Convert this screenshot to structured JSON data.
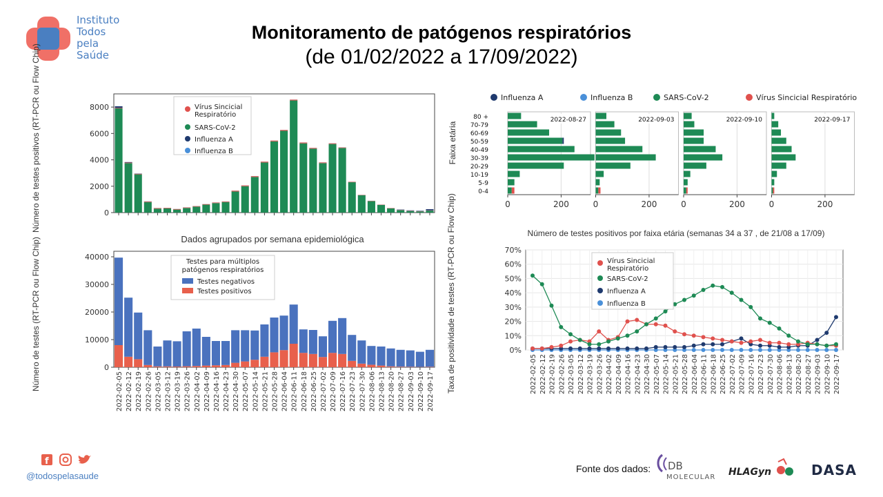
{
  "header": {
    "logo_lines": [
      "Instituto",
      "Todos",
      "pela",
      "Saúde"
    ],
    "title": "Monitoramento de patógenos respiratórios",
    "subtitle": "(de 01/02/2022 a 17/09/2022)"
  },
  "footer": {
    "handle": "@todospelasaude",
    "source_label": "Fonte dos dados:",
    "partners": [
      "DB",
      "MOLECULAR",
      "HLAGyn",
      "DASA"
    ]
  },
  "colors": {
    "sars": "#1e8a55",
    "rsv": "#e0514d",
    "flu_a": "#1f3a6e",
    "flu_b": "#4a90d9",
    "neg": "#4a72be",
    "pos": "#e8604c"
  },
  "weeks": [
    "2022-02-05",
    "2022-02-12",
    "2022-02-19",
    "2022-02-26",
    "2022-03-05",
    "2022-03-12",
    "2022-03-19",
    "2022-03-26",
    "2022-04-02",
    "2022-04-09",
    "2022-04-16",
    "2022-04-23",
    "2022-04-30",
    "2022-05-07",
    "2022-05-14",
    "2022-05-21",
    "2022-05-28",
    "2022-06-04",
    "2022-06-11",
    "2022-06-18",
    "2022-06-25",
    "2022-07-02",
    "2022-07-09",
    "2022-07-16",
    "2022-07-23",
    "2022-07-30",
    "2022-08-06",
    "2022-08-13",
    "2022-08-20",
    "2022-08-27",
    "2022-09-03",
    "2022-09-10",
    "2022-09-17"
  ],
  "chart_data": [
    {
      "type": "bar",
      "id": "positives_stacked",
      "ylabel": "Número de testes positivos (RT-PCR ou Flow Chip)",
      "ylim": [
        0,
        9000
      ],
      "yticks": [
        0,
        2000,
        4000,
        6000,
        8000
      ],
      "legend": "top-center",
      "legend_entries": [
        "Vírus Sincicial Respiratório",
        "SARS-CoV-2",
        "Influenza A",
        "Influenza B"
      ],
      "series": [
        {
          "name": "SARS-CoV-2",
          "color": "#1e8a55",
          "values": [
            7900,
            3750,
            2900,
            800,
            300,
            320,
            230,
            350,
            450,
            600,
            720,
            800,
            1600,
            2000,
            2700,
            3800,
            5400,
            6200,
            8500,
            5250,
            4850,
            3750,
            5200,
            4900,
            2300,
            1320,
            870,
            580,
            320,
            180,
            120,
            90,
            150
          ]
        },
        {
          "name": "Vírus Sincicial Respiratório",
          "color": "#e0514d",
          "values": [
            40,
            40,
            40,
            40,
            40,
            40,
            40,
            40,
            40,
            40,
            40,
            40,
            60,
            60,
            60,
            60,
            60,
            60,
            60,
            60,
            50,
            50,
            50,
            40,
            30,
            20,
            20,
            20,
            20,
            20,
            20,
            20,
            20
          ]
        },
        {
          "name": "Influenza A",
          "color": "#1f3a6e",
          "values": [
            120,
            40,
            20,
            10,
            5,
            5,
            5,
            5,
            5,
            5,
            5,
            5,
            5,
            5,
            5,
            5,
            5,
            5,
            5,
            5,
            5,
            5,
            5,
            5,
            5,
            5,
            5,
            5,
            5,
            30,
            30,
            30,
            90
          ]
        },
        {
          "name": "Influenza B",
          "color": "#4a90d9",
          "values": [
            0,
            0,
            0,
            0,
            0,
            0,
            0,
            0,
            0,
            0,
            0,
            0,
            0,
            0,
            0,
            0,
            0,
            0,
            0,
            0,
            0,
            0,
            0,
            0,
            0,
            0,
            0,
            0,
            0,
            0,
            0,
            0,
            0
          ]
        }
      ]
    },
    {
      "type": "bar",
      "id": "tests_stacked",
      "title": "Dados agrupados por semana epidemiológica",
      "ylabel": "Número de testes (RT-PCR ou Flow Chip)",
      "ylim": [
        0,
        42000
      ],
      "yticks": [
        0,
        10000,
        20000,
        30000,
        40000
      ],
      "legend": "top-center",
      "legend_title": "Testes para múltiplos patógenos respiratórios",
      "series": [
        {
          "name": "Testes positivos",
          "color": "#e8604c",
          "values": [
            8000,
            3800,
            2900,
            800,
            300,
            300,
            250,
            350,
            450,
            600,
            700,
            800,
            1600,
            2100,
            2700,
            3800,
            5400,
            6200,
            8500,
            5200,
            4800,
            3700,
            5200,
            4800,
            2300,
            1300,
            900,
            600,
            300,
            200,
            150,
            100,
            150
          ]
        },
        {
          "name": "Testes negativos",
          "color": "#4a72be",
          "values": [
            31700,
            21400,
            16900,
            12600,
            7200,
            9400,
            9150,
            12650,
            13550,
            10400,
            8800,
            8700,
            11800,
            11300,
            10600,
            11700,
            12600,
            12500,
            14200,
            8500,
            8700,
            7500,
            11600,
            13000,
            9400,
            8400,
            6800,
            6900,
            6500,
            6100,
            5950,
            5500,
            6150
          ]
        }
      ]
    },
    {
      "type": "bar",
      "id": "age_group_panels",
      "orientation": "horizontal",
      "ylabel": "Faixa etária",
      "age_groups": [
        "80 +",
        "70-79",
        "60-69",
        "50-59",
        "40-49",
        "30-39",
        "20-29",
        "10-19",
        "5-9",
        "0-4"
      ],
      "xticks": [
        0,
        200
      ],
      "xlim": [
        0,
        310
      ],
      "legend": "top",
      "legend_entries": [
        "Influenza A",
        "Influenza B",
        "SARS-CoV-2",
        "Vírus Sincicial Respiratório"
      ],
      "panels": [
        {
          "label": "2022-08-27",
          "sars": [
            50,
            110,
            155,
            205,
            250,
            325,
            210,
            45,
            25,
            15
          ],
          "rsv": [
            0,
            0,
            0,
            0,
            0,
            0,
            0,
            0,
            0,
            10
          ],
          "flu_a": [
            0,
            0,
            0,
            5,
            0,
            0,
            0,
            0,
            0,
            0
          ]
        },
        {
          "label": "2022-09-03",
          "sars": [
            40,
            70,
            95,
            110,
            175,
            225,
            130,
            30,
            15,
            10
          ],
          "rsv": [
            0,
            0,
            0,
            0,
            0,
            0,
            0,
            0,
            0,
            8
          ],
          "flu_a": [
            0,
            0,
            0,
            0,
            0,
            0,
            0,
            0,
            0,
            0
          ]
        },
        {
          "label": "2022-09-10",
          "sars": [
            30,
            40,
            75,
            75,
            120,
            145,
            85,
            25,
            15,
            10
          ],
          "rsv": [
            0,
            0,
            0,
            0,
            0,
            0,
            0,
            0,
            0,
            5
          ],
          "flu_a": [
            0,
            0,
            0,
            0,
            0,
            0,
            0,
            0,
            0,
            0
          ]
        },
        {
          "label": "2022-09-17",
          "sars": [
            10,
            25,
            35,
            55,
            75,
            90,
            55,
            20,
            10,
            5
          ],
          "rsv": [
            0,
            0,
            0,
            0,
            0,
            0,
            0,
            0,
            0,
            5
          ],
          "flu_a": [
            0,
            0,
            0,
            0,
            0,
            0,
            0,
            0,
            0,
            0
          ]
        }
      ],
      "title": "Número de testes positivos por faixa etária (semanas 34 a 37 , de 21/08 a 17/09)"
    },
    {
      "type": "line",
      "id": "positivity_rate",
      "ylabel": "Taxa de positividade de testes (RT-PCR ou Flow Chip)",
      "ylim": [
        0,
        70
      ],
      "yticks": [
        "0%",
        "10%",
        "20%",
        "30%",
        "40%",
        "50%",
        "60%",
        "70%"
      ],
      "legend": "top-left",
      "series": [
        {
          "name": "Vírus Sincicial Respiratório",
          "color": "#e0514d",
          "values": [
            1,
            1,
            2,
            3,
            6,
            7,
            6,
            13,
            7,
            9,
            20,
            21,
            18,
            18,
            17,
            13,
            11,
            10,
            9,
            8,
            7,
            6,
            5,
            6,
            7,
            5,
            5,
            4,
            4,
            5,
            4,
            3,
            3
          ]
        },
        {
          "name": "SARS-CoV-2",
          "color": "#1e8a55",
          "values": [
            52,
            46,
            31,
            16,
            11,
            7,
            4,
            4,
            6,
            8,
            10,
            13,
            18,
            22,
            27,
            32,
            35,
            38,
            42,
            45,
            44,
            40,
            35,
            30,
            22,
            19,
            15,
            10,
            6,
            4,
            4,
            3,
            4
          ]
        },
        {
          "name": "Influenza A",
          "color": "#1f3a6e",
          "values": [
            1,
            1,
            1,
            1,
            1,
            1,
            1,
            1,
            1,
            1,
            1,
            1,
            1,
            2,
            2,
            2,
            2,
            3,
            4,
            4,
            4,
            6,
            8,
            4,
            3,
            3,
            2,
            2,
            3,
            3,
            7,
            12,
            23
          ]
        },
        {
          "name": "Influenza B",
          "color": "#4a90d9",
          "values": [
            0,
            0,
            0,
            0,
            0,
            0,
            0,
            0,
            0,
            0,
            0,
            0,
            0,
            0,
            0,
            0,
            0,
            0,
            0,
            0,
            0,
            0,
            0,
            0,
            0,
            0,
            0,
            0,
            0,
            0,
            0,
            0,
            0
          ]
        }
      ]
    }
  ]
}
